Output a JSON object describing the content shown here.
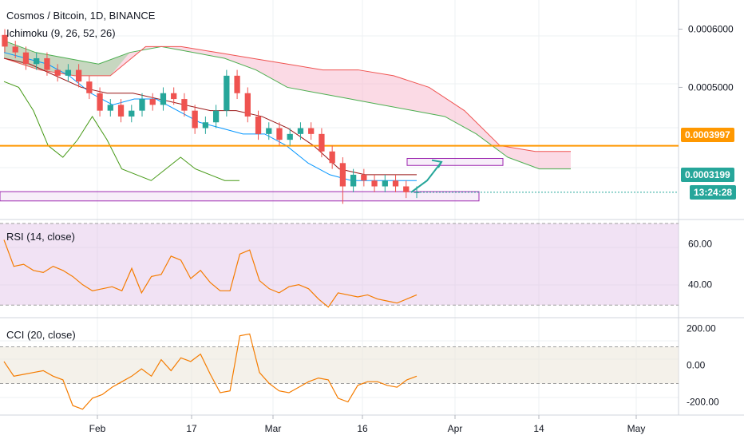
{
  "header": {
    "title": "Cosmos / Bitcoin, 1D, BINANCE",
    "indicator": "Ichimoku (9, 26, 52, 26)"
  },
  "colors": {
    "background": "#ffffff",
    "grid": "#eef0f3",
    "candle_up": "#26a69a",
    "candle_down": "#ef5350",
    "horizontal_line": "#ff9800",
    "price_badge": "#26a69a",
    "cloud_bull": "#a5d6a7",
    "cloud_bear": "#f8bbd0",
    "tenkan": "#0496ff",
    "kijun": "#991515",
    "lagging": "#459915",
    "senkou_a": "#4caf50",
    "senkou_b": "#ef5350",
    "rsi_line": "#f57c00",
    "rsi_band": "#e1bee7",
    "cci_band": "#ede7dc",
    "box": "#9c27b0"
  },
  "badges": {
    "level_price": "0.0003997",
    "last_price": "0.0003199",
    "countdown": "13:24:28"
  },
  "panes": {
    "rsi_label": "RSI (14, close)",
    "cci_label": "CCI (20, close)"
  },
  "chart_data": [
    {
      "type": "candlestick",
      "pane": "price",
      "x_labels": [
        "Feb",
        "17",
        "Mar",
        "16",
        "Apr",
        "14",
        "May"
      ],
      "y_ticks": [
        "0.0006000",
        "0.0005000"
      ],
      "ylim": [
        0.00028,
        0.00065
      ],
      "horizontal_levels": [
        0.0003997
      ],
      "last_price": 0.0003199,
      "candles": [
        [
          0.00059,
          0.0006,
          0.00056,
          0.00057
        ],
        [
          0.00057,
          0.00058,
          0.00055,
          0.00056
        ],
        [
          0.00056,
          0.00057,
          0.00053,
          0.00054
        ],
        [
          0.00054,
          0.00056,
          0.00053,
          0.00055
        ],
        [
          0.00055,
          0.00056,
          0.00052,
          0.00053
        ],
        [
          0.00053,
          0.00054,
          0.00051,
          0.00052
        ],
        [
          0.00052,
          0.00054,
          0.00051,
          0.00053
        ],
        [
          0.00053,
          0.00054,
          0.0005,
          0.00051
        ],
        [
          0.00051,
          0.00052,
          0.00048,
          0.00049
        ],
        [
          0.00049,
          0.0005,
          0.00045,
          0.00046
        ],
        [
          0.00046,
          0.00048,
          0.00045,
          0.00047
        ],
        [
          0.00047,
          0.00048,
          0.00044,
          0.00045
        ],
        [
          0.00045,
          0.00047,
          0.00044,
          0.00046
        ],
        [
          0.00046,
          0.00049,
          0.00045,
          0.00048
        ],
        [
          0.00048,
          0.00049,
          0.00046,
          0.00047
        ],
        [
          0.00047,
          0.0005,
          0.00046,
          0.00049
        ],
        [
          0.00049,
          0.0005,
          0.00047,
          0.00048
        ],
        [
          0.00048,
          0.00049,
          0.00045,
          0.00046
        ],
        [
          0.00046,
          0.00047,
          0.00042,
          0.00043
        ],
        [
          0.00043,
          0.00045,
          0.00042,
          0.00044
        ],
        [
          0.00044,
          0.00047,
          0.00043,
          0.00046
        ],
        [
          0.00046,
          0.00053,
          0.00045,
          0.00052
        ],
        [
          0.00052,
          0.00053,
          0.00048,
          0.00049
        ],
        [
          0.00049,
          0.0005,
          0.00044,
          0.00045
        ],
        [
          0.00045,
          0.00046,
          0.00041,
          0.00042
        ],
        [
          0.00042,
          0.00044,
          0.00041,
          0.00043
        ],
        [
          0.00043,
          0.00044,
          0.0004,
          0.00041
        ],
        [
          0.00041,
          0.00043,
          0.0004,
          0.00042
        ],
        [
          0.00042,
          0.00044,
          0.00041,
          0.00043
        ],
        [
          0.00043,
          0.00044,
          0.00041,
          0.00042
        ],
        [
          0.00042,
          0.00043,
          0.00038,
          0.00039
        ],
        [
          0.00039,
          0.0004,
          0.00036,
          0.00037
        ],
        [
          0.00037,
          0.00038,
          0.0003,
          0.00033
        ],
        [
          0.00033,
          0.00036,
          0.00032,
          0.00035
        ],
        [
          0.00035,
          0.00036,
          0.00033,
          0.00034
        ],
        [
          0.00034,
          0.00035,
          0.00032,
          0.00033
        ],
        [
          0.00033,
          0.00035,
          0.00032,
          0.00034
        ],
        [
          0.00034,
          0.00035,
          0.00032,
          0.00033
        ],
        [
          0.00033,
          0.00034,
          0.00031,
          0.00032
        ],
        [
          0.00032,
          0.00033,
          0.00031,
          0.00032
        ]
      ],
      "tenkan": [
        0.00056,
        0.00055,
        0.00054,
        0.00052,
        0.00049,
        0.00047,
        0.00048,
        0.00048,
        0.00046,
        0.00044,
        0.00043,
        0.00042,
        0.00042,
        0.0004,
        0.00037,
        0.00035,
        0.00034,
        0.00034,
        0.00034,
        0.00034
      ],
      "kijun": [
        0.00055,
        0.00054,
        0.00052,
        0.0005,
        0.00049,
        0.00049,
        0.00048,
        0.00047,
        0.00046,
        0.00046,
        0.00045,
        0.00043,
        0.0004,
        0.00036,
        0.00035,
        0.00035,
        0.00035
      ],
      "senkou_a": [
        0.00058,
        0.00056,
        0.00055,
        0.00054,
        0.00056,
        0.00057,
        0.00056,
        0.00055,
        0.00053,
        0.0005,
        0.00049,
        0.00048,
        0.00047,
        0.00046,
        0.00045,
        0.00042,
        0.00038,
        0.00036,
        0.00036
      ],
      "senkou_b": [
        0.00055,
        0.00053,
        0.00052,
        0.00052,
        0.00057,
        0.00057,
        0.00056,
        0.00055,
        0.00054,
        0.00053,
        0.00053,
        0.00052,
        0.0005,
        0.00046,
        0.0004,
        0.00039,
        0.00039
      ],
      "lagging": [
        0.00051,
        0.0005,
        0.00046,
        0.0004,
        0.00038,
        0.00041,
        0.00045,
        0.00041,
        0.00036,
        0.00035,
        0.00034,
        0.00036,
        0.00038,
        0.00036,
        0.00035,
        0.00034,
        0.00034
      ]
    },
    {
      "type": "line",
      "pane": "rsi",
      "title": "RSI (14, close)",
      "ylim": [
        25,
        70
      ],
      "y_ticks": [
        "60.00",
        "40.00"
      ],
      "band": [
        30,
        70
      ],
      "values": [
        62,
        49,
        50,
        47,
        46,
        49,
        47,
        44,
        40,
        37,
        38,
        39,
        37,
        48,
        36,
        44,
        45,
        54,
        52,
        43,
        47,
        41,
        37,
        37,
        55,
        57,
        42,
        38,
        36,
        39,
        40,
        38,
        33,
        29,
        36,
        35,
        34,
        35,
        33,
        32,
        31,
        33,
        35
      ]
    },
    {
      "type": "line",
      "pane": "cci",
      "title": "CCI (20, close)",
      "ylim": [
        -250,
        250
      ],
      "y_ticks": [
        "200.00",
        "0.00",
        "-200.00"
      ],
      "band": [
        -100,
        100
      ],
      "values": [
        20,
        -60,
        -50,
        -40,
        -30,
        -60,
        -80,
        -220,
        -240,
        -180,
        -160,
        -120,
        -90,
        -60,
        -20,
        -60,
        30,
        -30,
        40,
        20,
        60,
        -50,
        -150,
        -140,
        160,
        170,
        -40,
        -100,
        -140,
        -150,
        -120,
        -90,
        -70,
        -80,
        -180,
        -200,
        -110,
        -90,
        -90,
        -110,
        -120,
        -80,
        -60
      ]
    }
  ]
}
